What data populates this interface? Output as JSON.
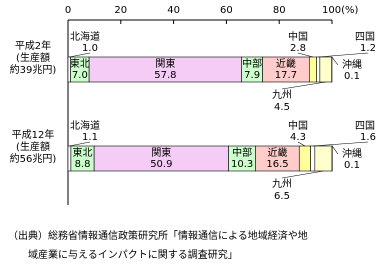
{
  "chart_data": {
    "type": "stacked-bar",
    "orientation": "horizontal",
    "categories": [
      [
        "平成2年",
        "(生産額",
        "約39兆円)"
      ],
      [
        "平成12年",
        "(生産額",
        "約56兆円)"
      ]
    ],
    "xlim": [
      0,
      100
    ],
    "xticks": [
      0,
      20,
      40,
      60,
      80,
      {
        "value": 100,
        "label": "100(%)"
      }
    ],
    "series": [
      {
        "name": "北海道",
        "color": "#ffffff",
        "values": [
          1.0,
          1.1
        ],
        "value_labels": [
          "1.0",
          "1.1"
        ]
      },
      {
        "name": "東北",
        "color": "#ccffcc",
        "values": [
          7.0,
          8.8
        ],
        "value_labels": [
          "7.0",
          "8.8"
        ]
      },
      {
        "name": "関東",
        "color": "#f5ccf5",
        "values": [
          57.8,
          50.9
        ]
      },
      {
        "name": "中部",
        "color": "#ccffcc",
        "values": [
          7.9,
          10.3
        ]
      },
      {
        "name": "近畿",
        "color": "#ffcccc",
        "values": [
          17.7,
          16.5
        ]
      },
      {
        "name": "中国",
        "color": "#ffff99",
        "values": [
          2.8,
          4.3
        ]
      },
      {
        "name": "四国",
        "color": "#ffffff",
        "values": [
          1.2,
          1.6
        ]
      },
      {
        "name": "九州",
        "color": "#ffffcc",
        "values": [
          4.5,
          6.5
        ]
      },
      {
        "name": "沖縄",
        "color": "#ccecff",
        "values": [
          0.1,
          0.1
        ]
      }
    ],
    "source": [
      "（出典）総務省情報通信政策研究所「情報通信による地域経済や地",
      "域産業に与えるインパクトに関する調査研究」"
    ]
  }
}
